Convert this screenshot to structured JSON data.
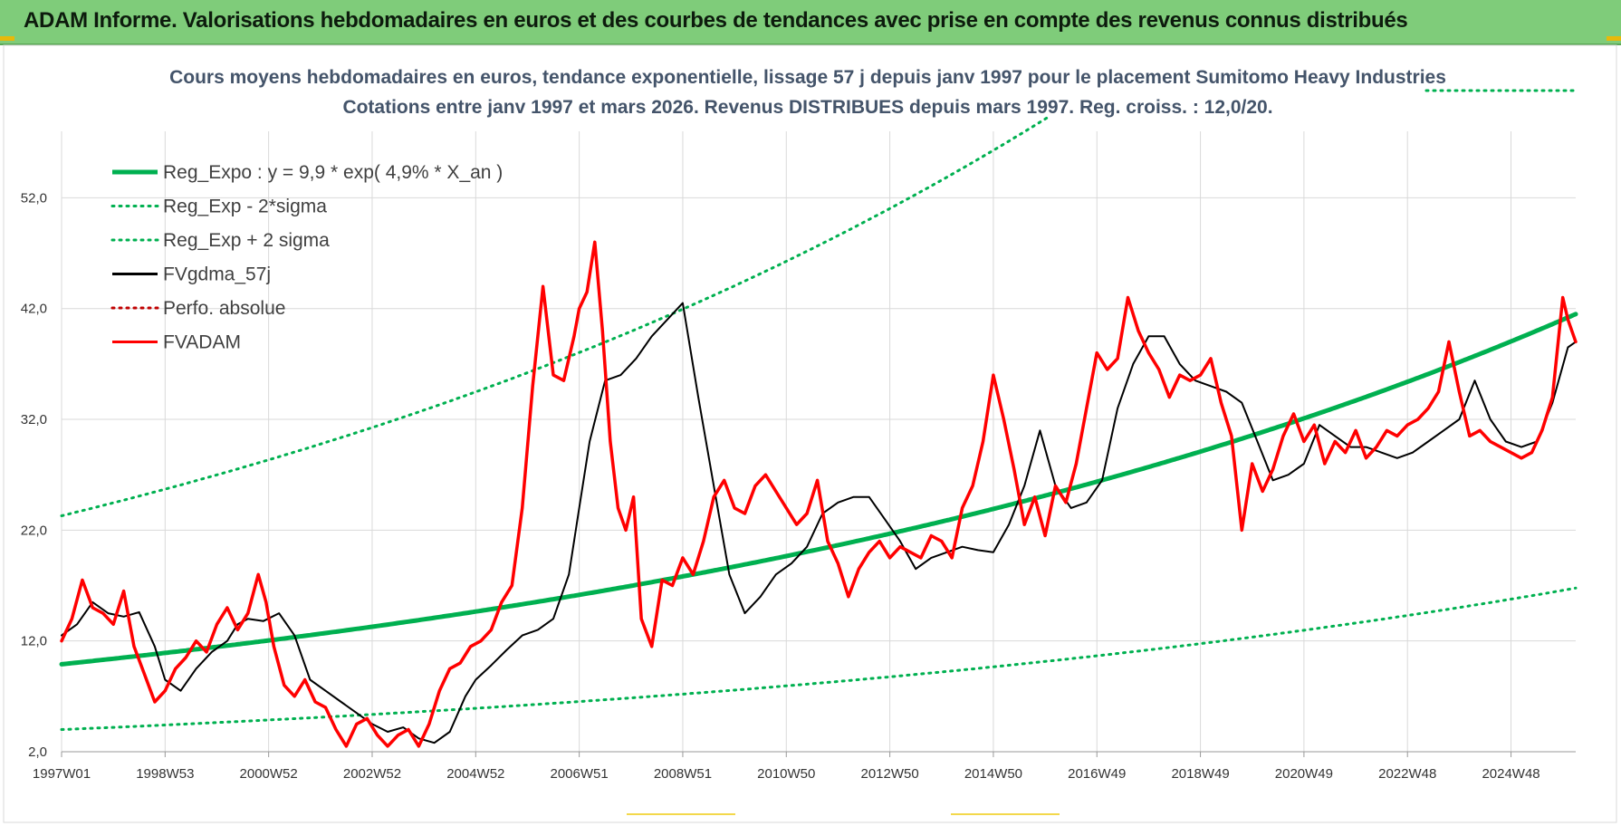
{
  "header": {
    "title": "ADAM Informe. Valorisations hebdomadaires en euros et des courbes de tendances avec prise en compte des revenus connus distribués"
  },
  "chart_data": {
    "type": "line",
    "title": "Cours moyens hebdomadaires en euros, tendance exponentielle, lissage 57 j depuis janv 1997  pour le placement Sumitomo Heavy Industries",
    "subtitle": "Cotations entre janv 1997 et mars 2026. Revenus DISTRIBUES depuis mars 1997. Reg. croiss. : 12,0/20.",
    "xlabel": "",
    "ylabel": "",
    "ylim": [
      2,
      58
    ],
    "y_ticks": [
      "2,0",
      "12,0",
      "22,0",
      "32,0",
      "42,0",
      "52,0"
    ],
    "x_ticks": [
      "1997W01",
      "1998W53",
      "2000W52",
      "2002W52",
      "2004W52",
      "2006W51",
      "2008W51",
      "2010W50",
      "2012W50",
      "2014W50",
      "2016W49",
      "2018W49",
      "2020W49",
      "2022W48",
      "2024W48"
    ],
    "x_range": [
      1997.0,
      2026.25
    ],
    "grid": true,
    "legend_position": "top-left",
    "series": [
      {
        "name": "Reg_Expo : y = 9,9 * exp( 4,9% *  X_an )",
        "color": "#00b050",
        "style": "solid",
        "x": [
          1997.0,
          2026.25
        ],
        "a": 9.9,
        "b": 0.049
      },
      {
        "name": "Reg_Exp - 2*sigma",
        "color": "#00b050",
        "style": "dotted",
        "x": [
          1997.0,
          2026.25
        ],
        "a": 4.0,
        "b": 0.049
      },
      {
        "name": "Reg_Exp + 2 sigma",
        "color": "#00b050",
        "style": "dotted",
        "x": [
          1997.0,
          2026.25
        ],
        "a": 23.3,
        "b": 0.049
      },
      {
        "name": "FVgdma_57j",
        "color": "#000000",
        "style": "solid",
        "x": [
          1997.0,
          1997.3,
          1997.6,
          1997.9,
          1998.2,
          1998.5,
          1998.8,
          1999.0,
          1999.3,
          1999.6,
          1999.9,
          2000.2,
          2000.4,
          2000.6,
          2000.9,
          2001.2,
          2001.5,
          2001.8,
          2002.1,
          2002.4,
          2002.7,
          2003.0,
          2003.3,
          2003.6,
          2003.9,
          2004.2,
          2004.5,
          2004.8,
          2005.0,
          2005.3,
          2005.6,
          2005.9,
          2006.2,
          2006.5,
          2006.8,
          2007.0,
          2007.2,
          2007.5,
          2007.8,
          2008.1,
          2008.4,
          2008.7,
          2009.0,
          2009.3,
          2009.6,
          2009.9,
          2010.2,
          2010.5,
          2010.8,
          2011.1,
          2011.4,
          2011.7,
          2012.0,
          2012.3,
          2012.6,
          2012.9,
          2013.2,
          2013.5,
          2013.8,
          2014.1,
          2014.4,
          2014.7,
          2015.0,
          2015.3,
          2015.6,
          2015.9,
          2016.2,
          2016.5,
          2016.8,
          2017.1,
          2017.4,
          2017.7,
          2018.0,
          2018.3,
          2018.6,
          2018.9,
          2019.2,
          2019.5,
          2019.8,
          2020.1,
          2020.4,
          2020.7,
          2021.0,
          2021.3,
          2021.6,
          2021.9,
          2022.2,
          2022.5,
          2022.8,
          2023.1,
          2023.4,
          2023.7,
          2024.0,
          2024.3,
          2024.6,
          2024.9,
          2025.2,
          2025.5,
          2025.8,
          2026.1,
          2026.25
        ],
        "values": [
          12.5,
          13.5,
          15.5,
          14.5,
          14.2,
          14.6,
          11.5,
          8.5,
          7.5,
          9.5,
          11.0,
          12.0,
          13.5,
          14.0,
          13.8,
          14.5,
          12.5,
          8.5,
          7.5,
          6.5,
          5.5,
          4.5,
          3.8,
          4.2,
          3.2,
          2.8,
          3.8,
          7.0,
          8.5,
          9.8,
          11.2,
          12.5,
          13.0,
          14.0,
          18.0,
          24.0,
          30.0,
          35.5,
          36.0,
          37.5,
          39.5,
          41.0,
          42.5,
          34.0,
          26.0,
          18.0,
          14.5,
          16.0,
          18.0,
          19.0,
          20.5,
          23.5,
          24.5,
          25.0,
          25.0,
          23.0,
          21.0,
          18.5,
          19.5,
          20.0,
          20.5,
          20.2,
          20.0,
          22.5,
          26.0,
          31.0,
          26.0,
          24.0,
          24.5,
          26.5,
          33.0,
          37.0,
          39.5,
          39.5,
          37.0,
          35.5,
          35.0,
          34.5,
          33.5,
          30.0,
          26.5,
          27.0,
          28.0,
          31.5,
          30.5,
          29.5,
          29.5,
          29.0,
          28.5,
          29.0,
          30.0,
          31.0,
          32.0,
          35.5,
          32.0,
          30.0,
          29.5,
          30.0,
          33.5,
          38.5,
          39.0
        ]
      },
      {
        "name": "Perfo. absolue",
        "color": "#c00000",
        "style": "dotted",
        "x": [],
        "values": []
      },
      {
        "name": "FVADAM",
        "color": "#ff0000",
        "style": "solid",
        "x": [
          1997.0,
          1997.2,
          1997.4,
          1997.6,
          1997.8,
          1998.0,
          1998.2,
          1998.4,
          1998.6,
          1998.8,
          1999.0,
          1999.2,
          1999.4,
          1999.6,
          1999.8,
          2000.0,
          2000.2,
          2000.4,
          2000.6,
          2000.8,
          2000.95,
          2001.1,
          2001.3,
          2001.5,
          2001.7,
          2001.9,
          2002.1,
          2002.3,
          2002.5,
          2002.7,
          2002.9,
          2003.1,
          2003.3,
          2003.5,
          2003.7,
          2003.9,
          2004.1,
          2004.3,
          2004.5,
          2004.7,
          2004.9,
          2005.1,
          2005.3,
          2005.5,
          2005.7,
          2005.9,
          2006.1,
          2006.3,
          2006.5,
          2006.7,
          2006.9,
          2007.0,
          2007.15,
          2007.3,
          2007.45,
          2007.6,
          2007.75,
          2007.9,
          2008.05,
          2008.2,
          2008.4,
          2008.6,
          2008.8,
          2009.0,
          2009.2,
          2009.4,
          2009.6,
          2009.8,
          2010.0,
          2010.2,
          2010.4,
          2010.6,
          2010.8,
          2011.0,
          2011.2,
          2011.4,
          2011.6,
          2011.8,
          2012.0,
          2012.2,
          2012.4,
          2012.6,
          2012.8,
          2013.0,
          2013.2,
          2013.4,
          2013.6,
          2013.8,
          2014.0,
          2014.2,
          2014.4,
          2014.6,
          2014.8,
          2015.0,
          2015.2,
          2015.4,
          2015.6,
          2015.8,
          2016.0,
          2016.2,
          2016.4,
          2016.6,
          2016.8,
          2017.0,
          2017.2,
          2017.4,
          2017.6,
          2017.8,
          2018.0,
          2018.2,
          2018.4,
          2018.6,
          2018.8,
          2019.0,
          2019.2,
          2019.4,
          2019.6,
          2019.8,
          2020.0,
          2020.2,
          2020.4,
          2020.6,
          2020.8,
          2021.0,
          2021.2,
          2021.4,
          2021.6,
          2021.8,
          2022.0,
          2022.2,
          2022.4,
          2022.6,
          2022.8,
          2023.0,
          2023.2,
          2023.4,
          2023.6,
          2023.8,
          2024.0,
          2024.2,
          2024.4,
          2024.6,
          2024.8,
          2025.0,
          2025.2,
          2025.4,
          2025.6,
          2025.8,
          2026.0,
          2026.1,
          2026.25
        ],
        "values": [
          12.0,
          14.0,
          17.5,
          15.0,
          14.5,
          13.5,
          16.5,
          11.5,
          9.0,
          6.5,
          7.5,
          9.5,
          10.5,
          12.0,
          11.0,
          13.5,
          15.0,
          13.0,
          14.5,
          18.0,
          15.5,
          11.5,
          8.0,
          7.0,
          8.5,
          6.5,
          6.0,
          4.0,
          2.5,
          4.5,
          5.0,
          3.5,
          2.5,
          3.5,
          4.0,
          2.5,
          4.5,
          7.5,
          9.5,
          10.0,
          11.5,
          12.0,
          13.0,
          15.5,
          17.0,
          24.0,
          35.0,
          44.0,
          36.0,
          35.5,
          39.5,
          42.0,
          43.5,
          48.0,
          40.0,
          30.0,
          24.0,
          22.0,
          25.0,
          14.0,
          11.5,
          17.5,
          17.0,
          19.5,
          18.0,
          21.0,
          25.0,
          26.5,
          24.0,
          23.5,
          26.0,
          27.0,
          25.5,
          24.0,
          22.5,
          23.5,
          26.5,
          21.0,
          19.0,
          16.0,
          18.5,
          20.0,
          21.0,
          19.5,
          20.5,
          20.0,
          19.5,
          21.5,
          21.0,
          19.5,
          24.0,
          26.0,
          30.0,
          36.0,
          32.0,
          27.5,
          22.5,
          25.0,
          21.5,
          26.0,
          24.5,
          28.0,
          33.0,
          38.0,
          36.5,
          37.5,
          43.0,
          40.0,
          38.0,
          36.5,
          34.0,
          36.0,
          35.5,
          36.0,
          37.5,
          33.5,
          30.5,
          22.0,
          28.0,
          25.5,
          27.5,
          30.5,
          32.5,
          30.0,
          31.5,
          28.0,
          30.0,
          29.0,
          31.0,
          28.5,
          29.5,
          31.0,
          30.5,
          31.5,
          32.0,
          33.0,
          34.5,
          39.0,
          34.5,
          30.5,
          31.0,
          30.0,
          29.5,
          29.0,
          28.5,
          29.0,
          31.0,
          34.0,
          43.0,
          41.0,
          39.0
        ]
      }
    ]
  }
}
